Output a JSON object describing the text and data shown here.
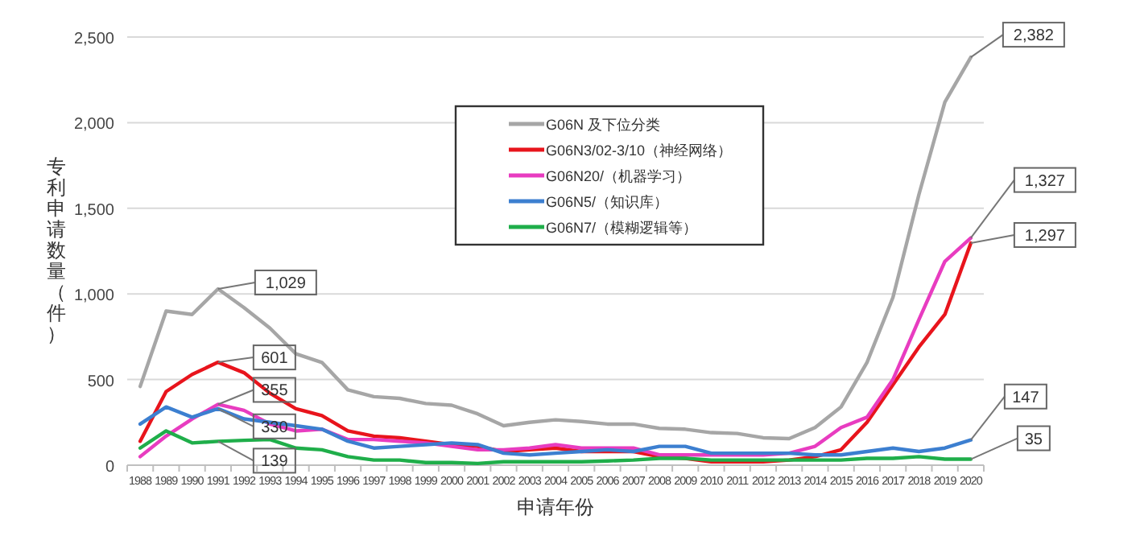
{
  "chart_data": {
    "type": "line",
    "xlabel": "申请年份",
    "ylabel": "专利申请数量（件）",
    "categories": [
      "1988",
      "1989",
      "1990",
      "1991",
      "1992",
      "1993",
      "1994",
      "1995",
      "1996",
      "1997",
      "1998",
      "1999",
      "2000",
      "2001",
      "2002",
      "2003",
      "2004",
      "2005",
      "2006",
      "2007",
      "2008",
      "2009",
      "2010",
      "2011",
      "2012",
      "2013",
      "2014",
      "2015",
      "2016",
      "2017",
      "2018",
      "2019",
      "2020"
    ],
    "ylim": [
      0,
      2500
    ],
    "yticks": [
      0,
      {
        "value": 500,
        "label": "500"
      },
      {
        "value": 1000,
        "label": "1,000"
      },
      {
        "value": 1500,
        "label": "1,500"
      },
      {
        "value": 2000,
        "label": "2,000"
      },
      {
        "value": 2500,
        "label": "2,500"
      }
    ],
    "grid": "y",
    "legend": "top",
    "marker": "none",
    "line_style": "solid",
    "series": [
      {
        "name": "G06N 及下位分类",
        "color": "#a6a6a6",
        "values": [
          460,
          900,
          880,
          1029,
          920,
          800,
          650,
          600,
          440,
          400,
          390,
          360,
          350,
          300,
          230,
          250,
          265,
          255,
          240,
          240,
          215,
          210,
          190,
          185,
          160,
          155,
          220,
          340,
          600,
          980,
          1580,
          2120,
          2382
        ]
      },
      {
        "name": "G06N3/02-3/10（神经网络）",
        "color": "#e8141c",
        "values": [
          140,
          430,
          530,
          601,
          540,
          420,
          330,
          290,
          200,
          170,
          160,
          140,
          120,
          110,
          80,
          90,
          100,
          80,
          80,
          80,
          50,
          40,
          20,
          20,
          20,
          30,
          50,
          90,
          250,
          470,
          690,
          880,
          1297
        ]
      },
      {
        "name": "G06N20/（机器学习）",
        "color": "#e83cc0",
        "values": [
          50,
          170,
          270,
          355,
          320,
          240,
          200,
          210,
          150,
          150,
          140,
          130,
          110,
          90,
          90,
          100,
          120,
          100,
          100,
          100,
          60,
          60,
          60,
          60,
          60,
          70,
          110,
          220,
          280,
          500,
          850,
          1190,
          1327
        ]
      },
      {
        "name": "G06N5/（知识库）",
        "color": "#3c7fd0",
        "values": [
          240,
          340,
          280,
          330,
          270,
          250,
          230,
          210,
          140,
          100,
          110,
          120,
          130,
          120,
          70,
          60,
          70,
          80,
          90,
          80,
          110,
          110,
          70,
          70,
          70,
          70,
          60,
          60,
          80,
          100,
          80,
          100,
          147
        ]
      },
      {
        "name": "G06N7/（模糊逻辑等）",
        "color": "#1fae4a",
        "values": [
          100,
          200,
          130,
          139,
          145,
          150,
          100,
          90,
          50,
          30,
          30,
          15,
          15,
          10,
          20,
          20,
          20,
          20,
          25,
          30,
          40,
          40,
          30,
          30,
          30,
          30,
          30,
          30,
          40,
          40,
          50,
          35,
          35
        ]
      }
    ],
    "annotations": [
      {
        "text": "1,029",
        "x": "1991",
        "y": 1029
      },
      {
        "text": "601",
        "x": "1991",
        "y": 601
      },
      {
        "text": "355",
        "x": "1991",
        "y": 355
      },
      {
        "text": "330",
        "x": "1991",
        "y": 330
      },
      {
        "text": "139",
        "x": "1991",
        "y": 139
      },
      {
        "text": "2,382",
        "x": "2020",
        "y": 2382
      },
      {
        "text": "1,327",
        "x": "2020",
        "y": 1327
      },
      {
        "text": "1,297",
        "x": "2020",
        "y": 1297
      },
      {
        "text": "147",
        "x": "2020",
        "y": 147
      },
      {
        "text": "35",
        "x": "2020",
        "y": 35
      }
    ]
  }
}
